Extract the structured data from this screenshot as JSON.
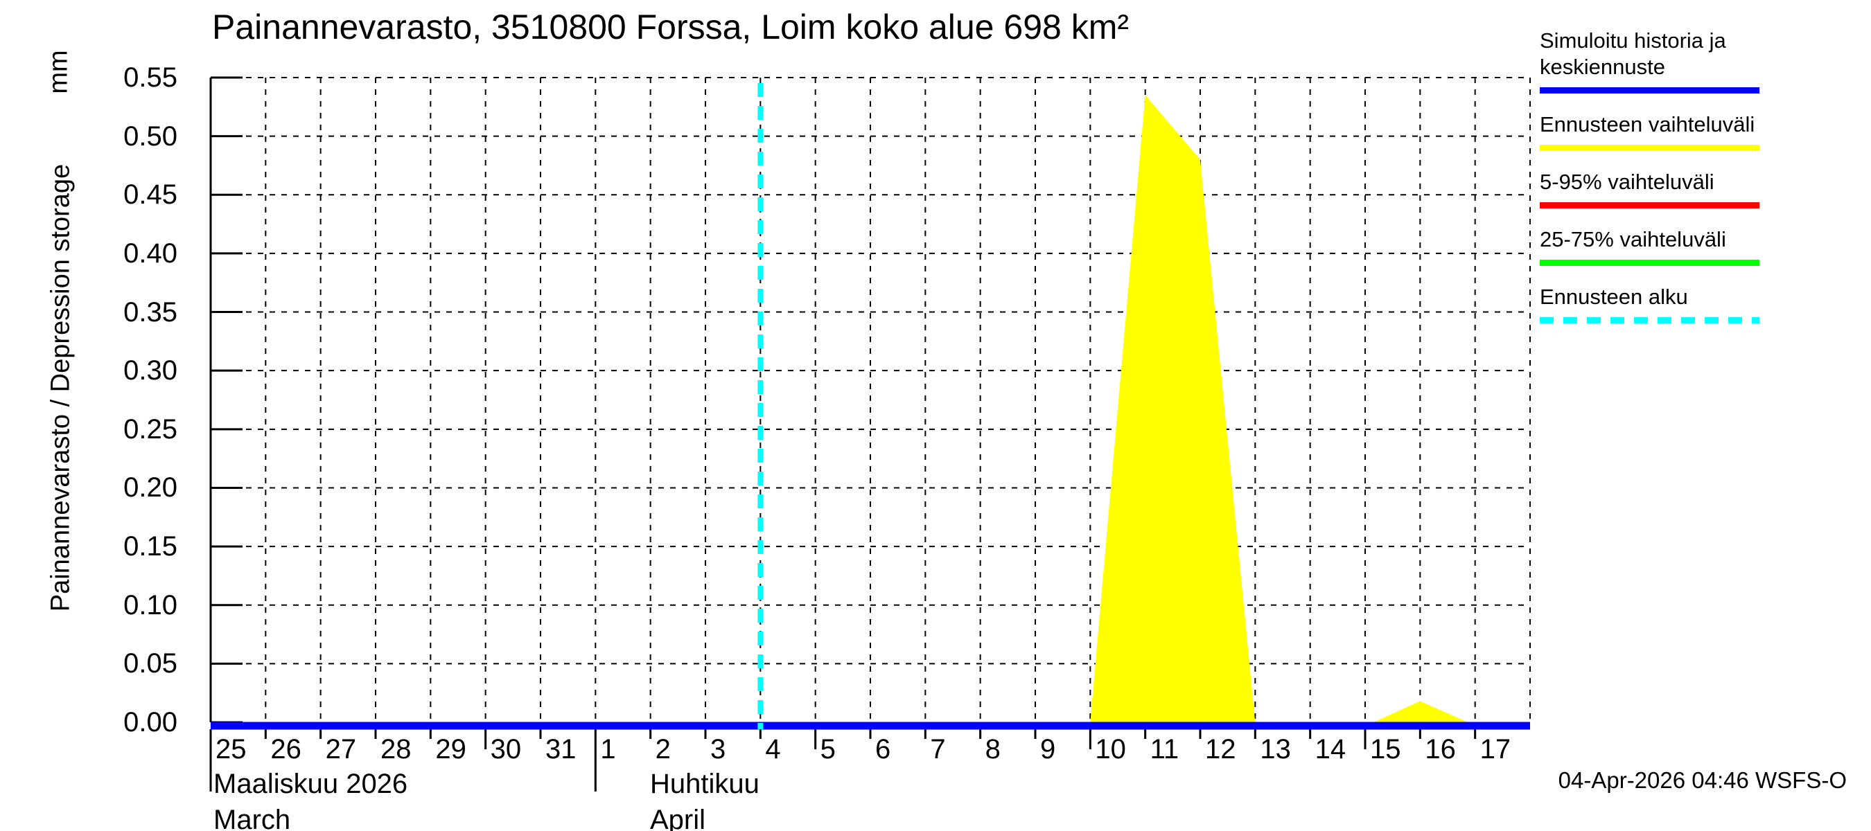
{
  "title": "Painannevarasto, 3510800 Forssa, Loim koko alue 698 km²",
  "y_unit": "mm",
  "y_label": "Painannevarasto / Depression storage",
  "timestamp": "04-Apr-2026 04:46 WSFS-O",
  "x_axis": {
    "march": {
      "fi": "Maaliskuu 2026",
      "en": "March"
    },
    "april": {
      "fi": "Huhtikuu",
      "en": "April"
    }
  },
  "legend": {
    "items": [
      {
        "label": "Simuloitu historia ja keskiennuste",
        "color": "#0000ff",
        "style": "solid"
      },
      {
        "label": "Ennusteen vaihteluväli",
        "color": "#ffff00",
        "style": "solid"
      },
      {
        "label": "5-95% vaihteluväli",
        "color": "#ff0000",
        "style": "solid"
      },
      {
        "label": "25-75% vaihteluväli",
        "color": "#00ff00",
        "style": "solid"
      },
      {
        "label": "Ennusteen alku",
        "color": "#00ffff",
        "style": "dashed"
      }
    ]
  },
  "chart_data": {
    "type": "area",
    "title": "Painannevarasto, 3510800 Forssa, Loim koko alue 698 km²",
    "ylabel": "Painannevarasto / Depression storage (mm)",
    "ylim": [
      0,
      0.55
    ],
    "y_tick_step": 0.05,
    "y_ticks": [
      "0.00",
      "0.05",
      "0.10",
      "0.15",
      "0.20",
      "0.25",
      "0.30",
      "0.35",
      "0.40",
      "0.45",
      "0.50",
      "0.55"
    ],
    "grid": true,
    "legend_position": "right",
    "x_unit": "days since 25 March 2026",
    "x_start_label": "25 March 2026",
    "xlim_days": [
      0,
      24
    ],
    "x_tick_labels": [
      "25",
      "26",
      "27",
      "28",
      "29",
      "30",
      "31",
      "1",
      "2",
      "3",
      "4",
      "5",
      "6",
      "7",
      "8",
      "9",
      "10",
      "11",
      "12",
      "13",
      "14",
      "15",
      "16",
      "17"
    ],
    "month_start_tick_indices": [
      0,
      7
    ],
    "medium_tick_indices": [
      5,
      11,
      16,
      21
    ],
    "forecast_start": {
      "name": "Ennusteen alku",
      "x_day": 10,
      "date": "04-Apr-2026",
      "color": "#00ffff"
    },
    "series": [
      {
        "name": "Simuloitu historia ja keskiennuste",
        "type": "line",
        "color": "#0000ff",
        "points": [
          [
            0,
            0.0
          ],
          [
            24,
            0.0
          ]
        ],
        "note": "flat at 0.00 mm across the whole period"
      },
      {
        "name": "Ennusteen vaihteluväli",
        "type": "area",
        "color": "#ffff00",
        "polygons": [
          [
            [
              16,
              0.0
            ],
            [
              17,
              0.535
            ],
            [
              18,
              0.48
            ],
            [
              19,
              0.0
            ]
          ],
          [
            [
              21.15,
              0.0
            ],
            [
              22,
              0.018
            ],
            [
              22.87,
              0.0
            ]
          ]
        ],
        "note": "peak 0.535 mm on Apr 11, secondary bump 0.018 mm on Apr 16"
      }
    ]
  }
}
